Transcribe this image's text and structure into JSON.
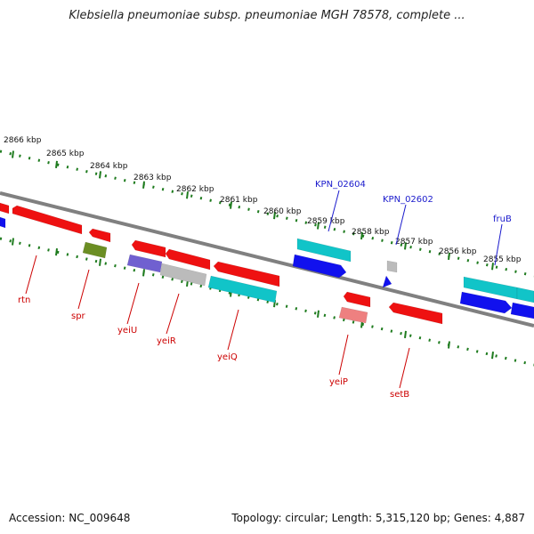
{
  "title": "Klebsiella pneumoniae subsp. pneumoniae MGH 78578, complete ...",
  "footer": {
    "accession": "Accession: NC_009648",
    "topology": "Topology: circular",
    "length": "Length: 5,315,120 bp",
    "genes": "Genes: 4,887"
  },
  "colors": {
    "red": "#ee1111",
    "cyan": "#11c4c8",
    "blue": "#1111ee",
    "olive": "#6b8e23",
    "purple": "#7060d0",
    "gray": "#bbbbbb",
    "pink": "#ee8080",
    "backbone": "#808080",
    "ticks": "#1e7b1e",
    "red_label": "#cc0000",
    "blue_label": "#1a1acc"
  },
  "scale_labels": [
    "2866 kbp",
    "2865 kbp",
    "2864 kbp",
    "2863 kbp",
    "2862 kbp",
    "2861 kbp",
    "2860 kbp",
    "2859 kbp",
    "2858 kbp",
    "2857 kbp",
    "2856 kbp",
    "2855 kbp"
  ],
  "red_labels": [
    "rtn",
    "spr",
    "yeiU",
    "yeiR",
    "yeiQ",
    "yeiP",
    "setB"
  ],
  "blue_labels": [
    "KPN_02604",
    "KPN_02602",
    "fruB"
  ]
}
